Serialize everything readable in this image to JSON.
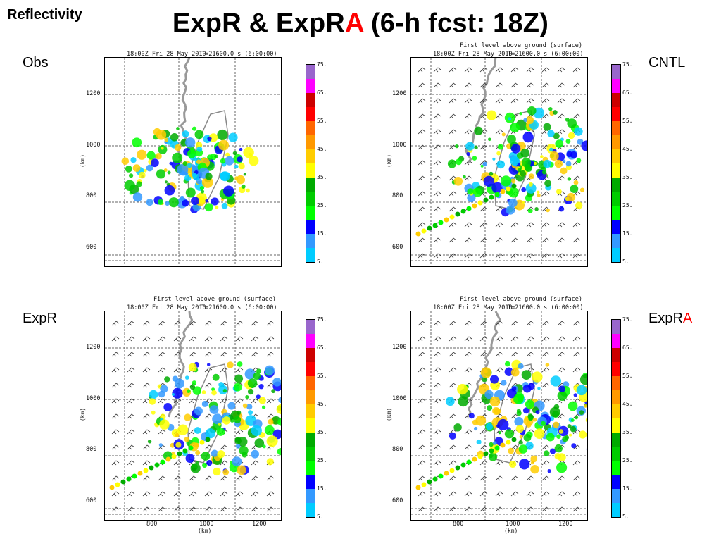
{
  "corner_label": "Reflectivity",
  "title": {
    "part1": "ExpR & ExpR",
    "part2": "A",
    "part3": " (6-h fcst: 18Z)"
  },
  "labels": {
    "obs": "Obs",
    "cntl": "CNTL",
    "expr": "ExpR",
    "expra_base": "ExpR",
    "expra_suffix": "A"
  },
  "plot_header": {
    "subtitle": "First level above ground (surface)",
    "time_left": "18:00Z Fri 28 May 2010",
    "time_right": "T=21600.0 s (6:00:00)"
  },
  "y_ticks": [
    "1200",
    "1000",
    "800",
    "600"
  ],
  "x_ticks": [
    "800",
    "1000",
    "1200"
  ],
  "axis_unit": "(km)",
  "colorbar": {
    "labels": [
      "75.",
      "65.",
      "55.",
      "45.",
      "35.",
      "25.",
      "15.",
      "5."
    ],
    "colors": [
      "#9966cc",
      "#ff00ff",
      "#cc0000",
      "#ff0000",
      "#ff6600",
      "#ff9900",
      "#ffcc00",
      "#ffff00",
      "#00aa00",
      "#00cc00",
      "#00ff00",
      "#0000ff",
      "#3399ff",
      "#00ccff"
    ]
  }
}
